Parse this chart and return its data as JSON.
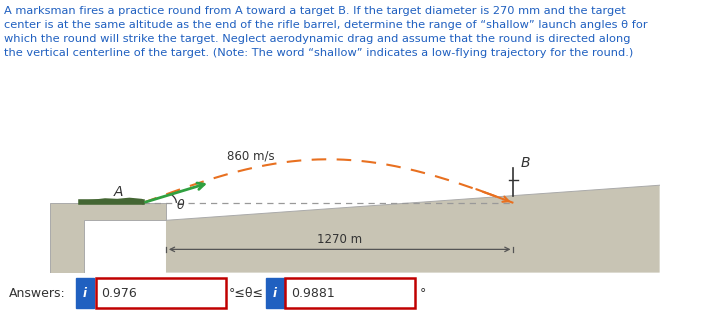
{
  "problem_text": "A marksman fires a practice round from A toward a target B. If the target diameter is 270 mm and the target\ncenter is at the same altitude as the end of the rifle barrel, determine the range of “shallow” launch angles θ for\nwhich the round will strike the target. Neglect aerodynamic drag and assume that the round is directed along\nthe vertical centerline of the target. (Note: The word “shallow” indicates a low-flying trajectory for the round.)",
  "speed_label": "860 m/s",
  "distance_label": "1270 m",
  "label_A": "A",
  "label_B": "B",
  "angle_label": "θ",
  "answer_label": "Answers:",
  "answer1": "0.976",
  "answer2": "0.9881",
  "between_label": "°≤θ≤",
  "degree_symbol": "°",
  "text_color": "#2060c0",
  "answer_box_border": "#c00000",
  "info_btn_color": "#2060c0",
  "bg_color": "#ffffff",
  "ground_color": "#c8c4b4",
  "ground_edge": "#aaaaaa",
  "traj_color": "#e87020",
  "vel_arrow_color": "#30a040",
  "dim_line_color": "#555555",
  "right_bar_color": "#4472c4"
}
